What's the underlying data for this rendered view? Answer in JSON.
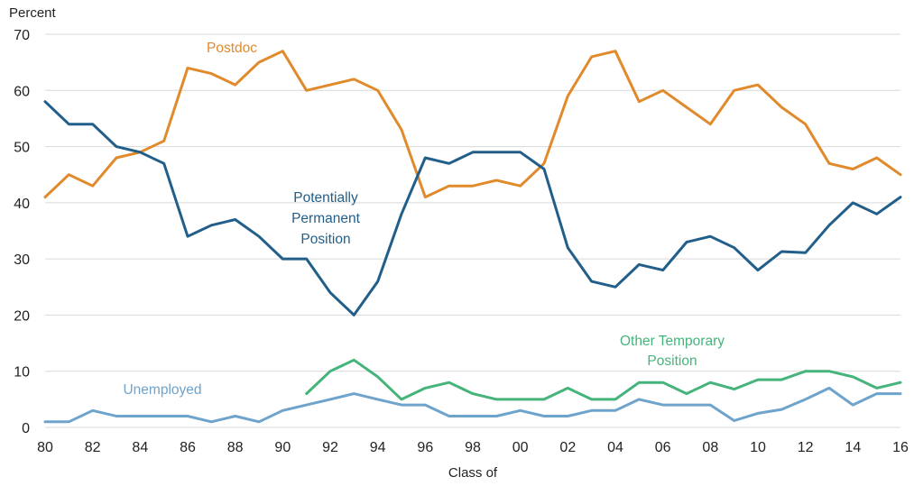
{
  "chart_data": {
    "type": "line",
    "ylabel": "Percent",
    "xlabel": "Class of",
    "ylim": [
      0,
      70
    ],
    "yticks": [
      0,
      10,
      20,
      30,
      40,
      50,
      60,
      70
    ],
    "grid": "horizontal",
    "x": [
      1980,
      1981,
      1982,
      1983,
      1984,
      1985,
      1986,
      1987,
      1988,
      1989,
      1990,
      1991,
      1992,
      1993,
      1994,
      1995,
      1996,
      1997,
      1998,
      1999,
      2000,
      2001,
      2002,
      2003,
      2004,
      2005,
      2006,
      2007,
      2008,
      2009,
      2010,
      2011,
      2012,
      2013,
      2014,
      2015,
      2016
    ],
    "xtick_labels": [
      "80",
      "82",
      "84",
      "86",
      "88",
      "90",
      "92",
      "94",
      "96",
      "98",
      "00",
      "02",
      "04",
      "06",
      "08",
      "10",
      "12",
      "14",
      "16"
    ],
    "series": [
      {
        "name": "Postdoc",
        "color": "#e08a2c",
        "values": [
          41,
          45,
          43,
          48,
          49,
          51,
          64,
          63,
          61,
          65,
          67,
          60,
          61,
          62,
          60,
          53,
          41,
          43,
          43,
          44,
          43,
          47,
          59,
          66,
          67,
          58,
          60,
          57,
          54,
          60,
          61,
          57,
          54,
          47,
          46,
          48,
          45
        ]
      },
      {
        "name": "Potentially Permanent Position",
        "label_lines": [
          "Potentially",
          "Permanent",
          "Position"
        ],
        "color": "#215f8a",
        "values": [
          58,
          54,
          54,
          50,
          49,
          47,
          34,
          36,
          37,
          34,
          30,
          30,
          24,
          20,
          26,
          38,
          48,
          47,
          49,
          49,
          49,
          46,
          32,
          26,
          25,
          29,
          28,
          33,
          34,
          32,
          28,
          31.3,
          31.1,
          36,
          40,
          38,
          41
        ]
      },
      {
        "name": "Other Temporary Position",
        "label_lines": [
          "Other Temporary",
          "Position"
        ],
        "color": "#45b47a",
        "values": [
          null,
          null,
          null,
          null,
          null,
          null,
          null,
          null,
          null,
          null,
          null,
          6,
          10,
          12,
          9,
          5,
          7,
          8,
          6,
          5,
          5,
          5,
          7,
          5,
          5,
          8,
          8,
          6,
          8,
          6.8,
          8.5,
          8.5,
          10,
          10,
          9,
          7,
          8
        ]
      },
      {
        "name": "Unemployed",
        "color": "#6ea3cc",
        "values": [
          1,
          1,
          3,
          2,
          2,
          2,
          2,
          1,
          2,
          1,
          3,
          4,
          5,
          6,
          5,
          4,
          4,
          2,
          2,
          2,
          3,
          2,
          2,
          3,
          3,
          5,
          4,
          4,
          4,
          1.2,
          2.5,
          3.2,
          5,
          7,
          4,
          6,
          6
        ]
      }
    ]
  }
}
